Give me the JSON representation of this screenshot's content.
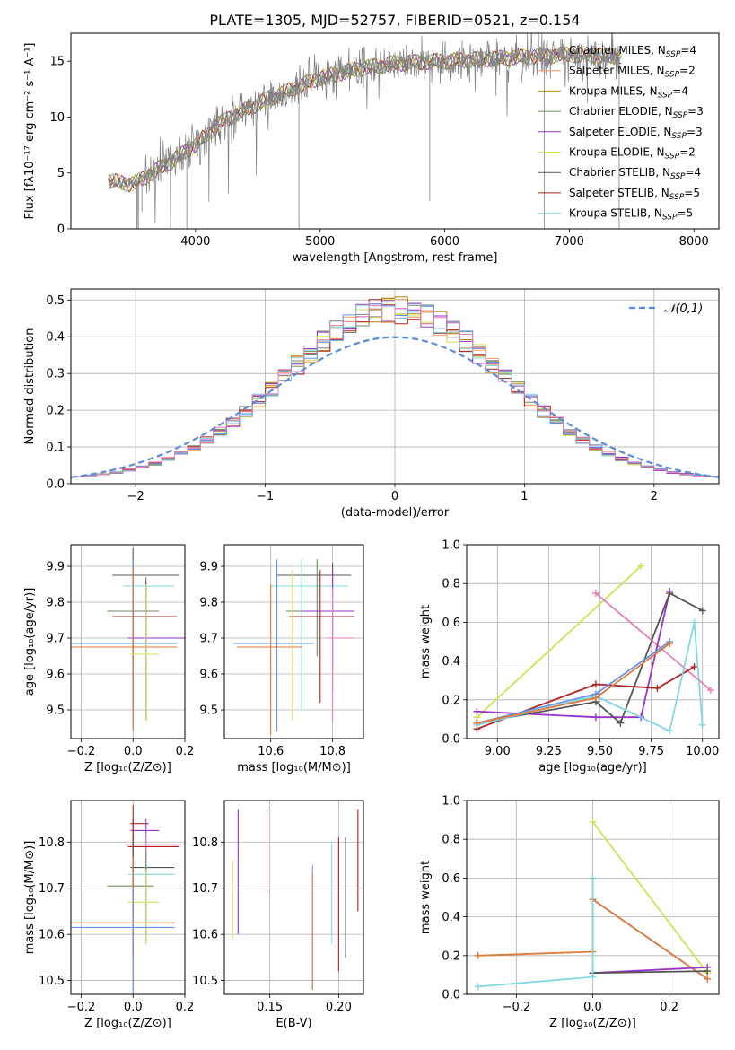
{
  "figure_title": "PLATE=1305, MJD=52757, FIBERID=0521, z=0.154",
  "colors": {
    "Chabrier MILES, N_SSP=4": "#7f7f7f",
    "Salpeter MILES, N_SSP=2": "#ff9966",
    "Kroupa MILES, N_SSP=4": "#b8860b",
    "Chabrier ELODIE, N_SSP=3": "#6b8e5a",
    "Salpeter ELODIE, N_SSP=3": "#9932cc",
    "Kroupa ELODIE, N_SSP=2": "#d4e157",
    "Chabrier STELIB, N_SSP=4": "#555555",
    "Salpeter STELIB, N_SSP=5": "#b22222",
    "Kroupa STELIB, N_SSP=5": "#80d8e0",
    "data": "#808080",
    "normal": "#5b8bd9",
    "pink": "#e87fb5",
    "blue": "#6495ed",
    "orange": "#e07b39"
  },
  "chart_data": [
    {
      "id": "spectrum",
      "type": "line",
      "title": "PLATE=1305, MJD=52757, FIBERID=0521, z=0.154",
      "xlabel": "wavelength [Angstrom, rest frame]",
      "ylabel": "Flux [fλ10⁻¹⁷ erg cm⁻² s⁻¹ A⁻¹]",
      "xlim": [
        3000,
        8200
      ],
      "ylim": [
        0,
        17.5
      ],
      "xticks": [
        4000,
        5000,
        6000,
        7000,
        8000
      ],
      "yticks": [
        0,
        5,
        10,
        15
      ],
      "legend_position": "top-right",
      "legend": [
        "Chabrier MILES, N_SSP=4",
        "Salpeter MILES, N_SSP=2",
        "Kroupa MILES, N_SSP=4",
        "Chabrier ELODIE, N_SSP=3",
        "Salpeter ELODIE, N_SSP=3",
        "Kroupa ELODIE, N_SSP=2",
        "Chabrier STELIB, N_SSP=4",
        "Salpeter STELIB, N_SSP=5",
        "Kroupa STELIB, N_SSP=5"
      ],
      "continuum": {
        "x": [
          3300,
          3500,
          3800,
          4000,
          4200,
          4500,
          4800,
          5000,
          5300,
          5600,
          6000,
          6500,
          7000,
          7500,
          8000
        ],
        "y": [
          4.3,
          4.0,
          6.0,
          7.5,
          9.5,
          11.2,
          12.6,
          13.5,
          14.3,
          14.8,
          15.0,
          15.3,
          15.6,
          15.4,
          15.4
        ]
      },
      "grid": false
    },
    {
      "id": "residuals",
      "type": "histogram",
      "xlabel": "(data-model)/error",
      "ylabel": "Normed distribution",
      "xlim": [
        -2.5,
        2.5
      ],
      "ylim": [
        0,
        0.53
      ],
      "xticks": [
        -2,
        -1,
        0,
        1,
        2
      ],
      "yticks": [
        0.0,
        0.1,
        0.2,
        0.3,
        0.4,
        0.5
      ],
      "legend": [
        "𝒩(0,1)"
      ],
      "legend_position": "top-right",
      "grid": true
    },
    {
      "id": "age_vs_Z",
      "type": "errorbar",
      "xlabel": "Z [log₁₀(Z/Z⊙)]",
      "ylabel": "age  [log₁₀(age/yr)]",
      "xlim": [
        -0.24,
        0.2
      ],
      "ylim": [
        9.42,
        9.96
      ],
      "xticks": [
        -0.2,
        0.0,
        0.2
      ],
      "yticks": [
        9.5,
        9.6,
        9.7,
        9.8,
        9.9
      ],
      "grid": true
    },
    {
      "id": "age_vs_mass",
      "type": "errorbar",
      "xlabel": "mass [log₁₀(M/M⊙)]",
      "xlim": [
        10.45,
        10.9
      ],
      "ylim": [
        9.42,
        9.96
      ],
      "xticks": [
        10.6,
        10.8
      ],
      "yticks": [
        9.5,
        9.6,
        9.7,
        9.8,
        9.9
      ],
      "grid": true
    },
    {
      "id": "weight_vs_age",
      "type": "line",
      "xlabel": "age  [log₁₀(age/yr)]",
      "ylabel": "mass weight",
      "xlim": [
        8.85,
        10.08
      ],
      "ylim": [
        0,
        1
      ],
      "xticks": [
        9.0,
        9.25,
        9.5,
        9.75,
        10.0
      ],
      "yticks": [
        0.0,
        0.2,
        0.4,
        0.6,
        0.8,
        1.0
      ],
      "grid": true,
      "series": [
        {
          "name": "Kroupa ELODIE, N_SSP=2",
          "color": "#d4e157",
          "x": [
            8.9,
            9.7
          ],
          "y": [
            0.11,
            0.89
          ]
        },
        {
          "name": "Pink",
          "color": "#e87fb5",
          "x": [
            9.48,
            10.04
          ],
          "y": [
            0.75,
            0.25
          ]
        },
        {
          "name": "Salpeter ELODIE, N_SSP=3",
          "color": "#9932cc",
          "x": [
            8.9,
            9.48,
            9.7,
            9.84
          ],
          "y": [
            0.14,
            0.11,
            0.11,
            0.76
          ]
        },
        {
          "name": "Chabrier STELIB, N_SSP=4",
          "color": "#555555",
          "x": [
            8.9,
            9.48,
            9.6,
            9.84,
            10.0
          ],
          "y": [
            0.08,
            0.19,
            0.08,
            0.75,
            0.66
          ]
        },
        {
          "name": "Salpeter STELIB, N_SSP=5",
          "color": "#b22222",
          "x": [
            8.9,
            9.48,
            9.78,
            9.96
          ],
          "y": [
            0.05,
            0.28,
            0.26,
            0.37
          ]
        },
        {
          "name": "Kroupa STELIB, N_SSP=5",
          "color": "#80d8e0",
          "x": [
            8.9,
            9.48,
            9.84,
            9.96,
            10.0
          ],
          "y": [
            0.07,
            0.22,
            0.04,
            0.6,
            0.07
          ]
        },
        {
          "name": "Blue",
          "color": "#6495ed",
          "x": [
            8.9,
            9.48,
            9.84
          ],
          "y": [
            0.08,
            0.23,
            0.5
          ]
        },
        {
          "name": "Orange",
          "color": "#e07b39",
          "x": [
            8.9,
            9.48,
            9.84
          ],
          "y": [
            0.08,
            0.21,
            0.49
          ]
        }
      ]
    },
    {
      "id": "mass_vs_Z",
      "type": "errorbar",
      "xlabel": "Z [log₁₀(Z/Z⊙)]",
      "ylabel": "mass [log₁₀(M/M⊙)]",
      "xlim": [
        -0.24,
        0.2
      ],
      "ylim": [
        10.47,
        10.89
      ],
      "xticks": [
        -0.2,
        0.0,
        0.2
      ],
      "yticks": [
        10.5,
        10.6,
        10.7,
        10.8
      ],
      "grid": true
    },
    {
      "id": "mass_vs_ebv",
      "type": "errorbar",
      "xlabel": "E(B-V)",
      "xlim": [
        0.117,
        0.218
      ],
      "ylim": [
        10.47,
        10.89
      ],
      "xticks": [
        0.15,
        0.2
      ],
      "yticks": [
        10.5,
        10.6,
        10.7,
        10.8
      ],
      "grid": true
    },
    {
      "id": "weight_vs_Z",
      "type": "line",
      "xlabel": "Z [log₁₀(Z/Z⊙)]",
      "ylabel": "mass weight",
      "xlim": [
        -0.33,
        0.33
      ],
      "ylim": [
        0,
        1
      ],
      "xticks": [
        -0.2,
        0.0,
        0.2
      ],
      "yticks": [
        0.0,
        0.2,
        0.4,
        0.6,
        0.8,
        1.0
      ],
      "grid": true,
      "series": [
        {
          "name": "Kroupa ELODIE, N_SSP=2",
          "color": "#d4e157",
          "x": [
            0.0,
            0.3
          ],
          "y": [
            0.89,
            0.11
          ]
        },
        {
          "name": "Blue",
          "color": "#6495ed",
          "x": [
            0.0,
            0.3
          ],
          "y": [
            0.49,
            0.08
          ]
        },
        {
          "name": "Orange",
          "color": "#e07b39",
          "x": [
            -0.3,
            0.0,
            0.0,
            0.3
          ],
          "y": [
            0.2,
            0.22,
            0.49,
            0.08
          ]
        },
        {
          "name": "Salpeter ELODIE, N_SSP=3",
          "color": "#9932cc",
          "x": [
            0.0,
            0.3
          ],
          "y": [
            0.11,
            0.14
          ]
        },
        {
          "name": "Chabrier STELIB, N_SSP=4",
          "color": "#555555",
          "x": [
            0.0,
            0.3
          ],
          "y": [
            0.11,
            0.12
          ]
        },
        {
          "name": "Kroupa STELIB, N_SSP=5",
          "color": "#80d8e0",
          "x": [
            -0.3,
            0.0,
            0.0
          ],
          "y": [
            0.04,
            0.09,
            0.6
          ]
        }
      ]
    }
  ]
}
